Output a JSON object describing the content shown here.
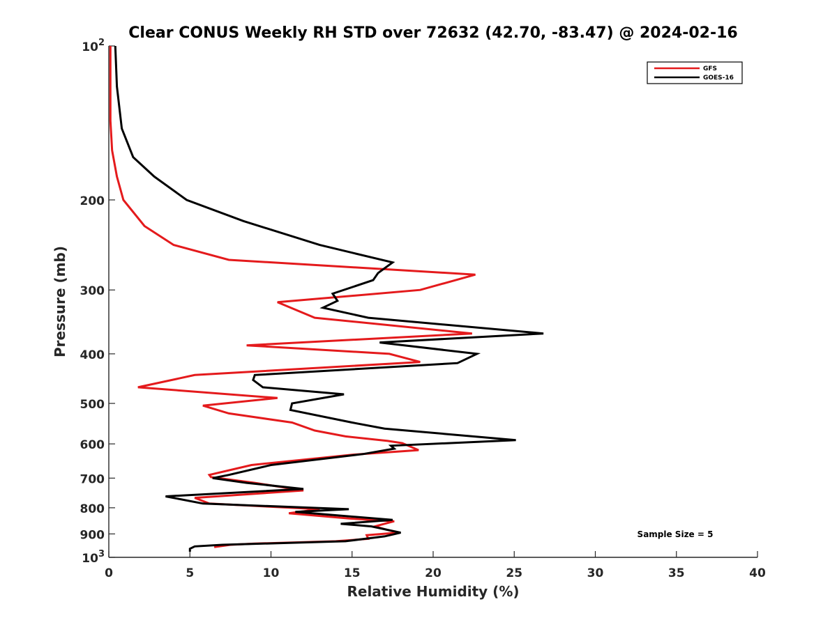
{
  "chart_data": {
    "type": "line",
    "title": "Clear CONUS Weekly RH STD over 72632 (42.70, -83.47) @ 2024-02-16",
    "xlabel": "Relative Humidity (%)",
    "ylabel": "Pressure (mb)",
    "xlim": [
      0,
      40
    ],
    "ylim": [
      100,
      1000
    ],
    "y_scale": "log",
    "y_reversed": true,
    "x_ticks": [
      0,
      5,
      10,
      15,
      20,
      25,
      30,
      35,
      40
    ],
    "y_ticks": [
      {
        "value": 100,
        "label": "10",
        "sup": "2"
      },
      {
        "value": 200,
        "label": "200",
        "sup": ""
      },
      {
        "value": 300,
        "label": "300",
        "sup": ""
      },
      {
        "value": 400,
        "label": "400",
        "sup": ""
      },
      {
        "value": 500,
        "label": "500",
        "sup": ""
      },
      {
        "value": 600,
        "label": "600",
        "sup": ""
      },
      {
        "value": 700,
        "label": "700",
        "sup": ""
      },
      {
        "value": 800,
        "label": "800",
        "sup": ""
      },
      {
        "value": 900,
        "label": "900",
        "sup": ""
      },
      {
        "value": 1000,
        "label": "10",
        "sup": "3"
      }
    ],
    "grid": false,
    "legend_position": "top-right",
    "annotation": "Sample Size = 5",
    "series": [
      {
        "name": "GFS",
        "color": "#e41a1c",
        "points": [
          [
            0.1,
            100
          ],
          [
            0.1,
            115
          ],
          [
            0.1,
            140
          ],
          [
            0.2,
            160
          ],
          [
            0.5,
            180
          ],
          [
            0.9,
            200
          ],
          [
            2.2,
            225
          ],
          [
            4.0,
            245
          ],
          [
            7.4,
            262
          ],
          [
            22.6,
            280
          ],
          [
            19.2,
            300
          ],
          [
            10.4,
            317
          ],
          [
            12.7,
            340
          ],
          [
            22.4,
            365
          ],
          [
            8.5,
            385
          ],
          [
            17.3,
            400
          ],
          [
            19.2,
            415
          ],
          [
            5.3,
            440
          ],
          [
            1.8,
            465
          ],
          [
            10.4,
            488
          ],
          [
            5.8,
            505
          ],
          [
            7.4,
            523
          ],
          [
            11.3,
            545
          ],
          [
            12.7,
            565
          ],
          [
            14.6,
            580
          ],
          [
            17.2,
            592
          ],
          [
            18.1,
            598
          ],
          [
            19.1,
            617
          ],
          [
            15.0,
            630
          ],
          [
            8.8,
            660
          ],
          [
            6.2,
            690
          ],
          [
            6.3,
            697
          ],
          [
            9.0,
            715
          ],
          [
            12.0,
            740
          ],
          [
            5.3,
            765
          ],
          [
            6.2,
            785
          ],
          [
            13.0,
            805
          ],
          [
            11.1,
            820
          ],
          [
            14.9,
            840
          ],
          [
            17.6,
            850
          ],
          [
            16.4,
            870
          ],
          [
            17.8,
            895
          ],
          [
            15.9,
            905
          ],
          [
            16.0,
            920
          ],
          [
            14.0,
            930
          ],
          [
            9.0,
            940
          ],
          [
            7.5,
            945
          ],
          [
            6.5,
            955
          ]
        ]
      },
      {
        "name": "GOES-16",
        "color": "#000000",
        "points": [
          [
            0.4,
            100
          ],
          [
            0.5,
            120
          ],
          [
            0.8,
            145
          ],
          [
            1.5,
            165
          ],
          [
            2.8,
            180
          ],
          [
            4.8,
            200
          ],
          [
            8.3,
            220
          ],
          [
            13.0,
            245
          ],
          [
            17.5,
            265
          ],
          [
            16.6,
            278
          ],
          [
            16.3,
            287
          ],
          [
            13.8,
            305
          ],
          [
            14.1,
            315
          ],
          [
            13.2,
            325
          ],
          [
            16.0,
            340
          ],
          [
            26.8,
            365
          ],
          [
            16.7,
            380
          ],
          [
            22.7,
            400
          ],
          [
            21.5,
            417
          ],
          [
            9.0,
            440
          ],
          [
            8.9,
            450
          ],
          [
            9.5,
            465
          ],
          [
            14.5,
            480
          ],
          [
            11.3,
            500
          ],
          [
            11.2,
            515
          ],
          [
            15.0,
            545
          ],
          [
            17.0,
            560
          ],
          [
            25.1,
            590
          ],
          [
            17.4,
            605
          ],
          [
            17.6,
            613
          ],
          [
            15.7,
            628
          ],
          [
            10.0,
            660
          ],
          [
            7.4,
            690
          ],
          [
            6.4,
            700
          ],
          [
            8.5,
            715
          ],
          [
            12.0,
            735
          ],
          [
            3.5,
            760
          ],
          [
            5.8,
            785
          ],
          [
            14.8,
            805
          ],
          [
            11.5,
            815
          ],
          [
            17.5,
            845
          ],
          [
            14.3,
            860
          ],
          [
            16.2,
            870
          ],
          [
            18.0,
            895
          ],
          [
            17.0,
            910
          ],
          [
            14.6,
            930
          ],
          [
            7.0,
            945
          ],
          [
            5.3,
            952
          ],
          [
            5.0,
            962
          ],
          [
            5.0,
            975
          ]
        ]
      }
    ]
  }
}
